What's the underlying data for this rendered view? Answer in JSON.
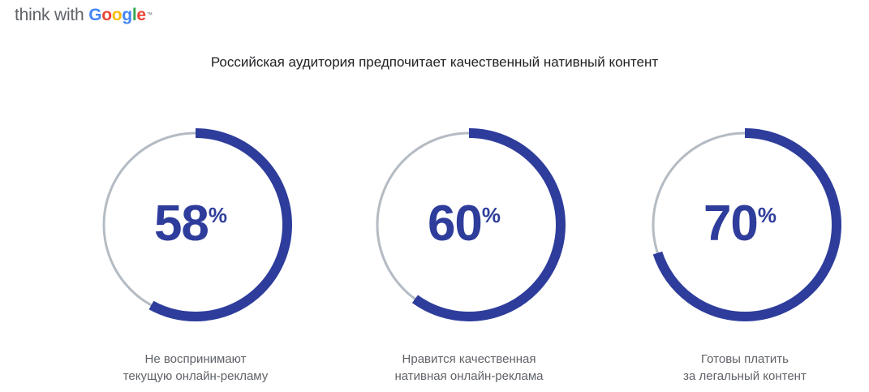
{
  "logo": {
    "prefix": "think with ",
    "brand": [
      "G",
      "o",
      "o",
      "g",
      "l",
      "e"
    ],
    "brand_colors": [
      "#4285f4",
      "#ea4335",
      "#fbbc05",
      "#4285f4",
      "#34a853",
      "#ea4335"
    ],
    "trademark": "™"
  },
  "title": "Российская аудитория предпочитает качественный нативный контент",
  "colors": {
    "accent": "#2e3d9b",
    "track": "#b4bbc3",
    "label": "#5f6368"
  },
  "chart_data": {
    "type": "donut",
    "title": "Российская аудитория предпочитает качественный нативный контент",
    "unit": "%",
    "items": [
      {
        "value": 58,
        "display": "58",
        "label_lines": [
          "Не воспринимают",
          "текущую онлайн-рекламу"
        ]
      },
      {
        "value": 60,
        "display": "60",
        "label_lines": [
          "Нравится качественная",
          "нативная онлайн-реклама"
        ]
      },
      {
        "value": 70,
        "display": "70",
        "label_lines": [
          "Готовы платить",
          "за легальный контент"
        ]
      }
    ]
  }
}
